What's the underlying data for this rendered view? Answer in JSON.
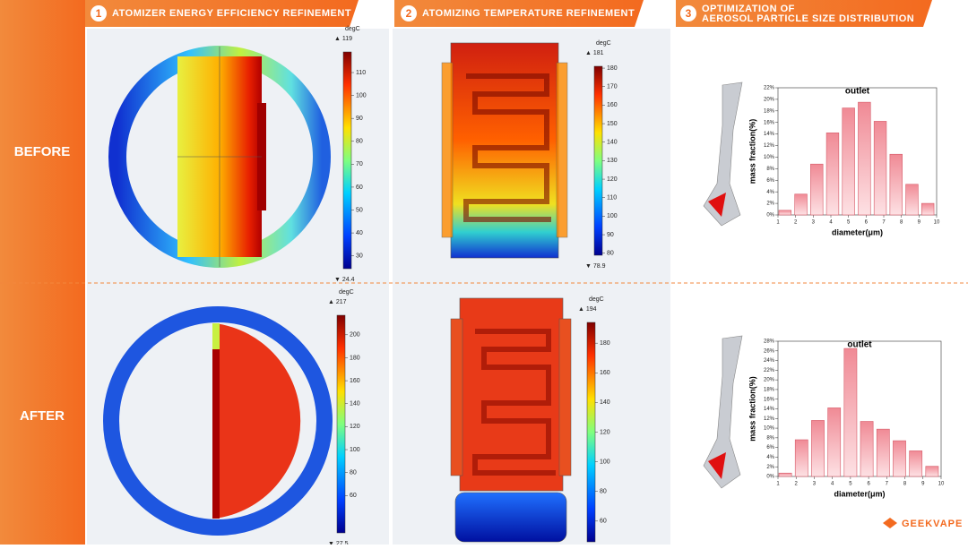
{
  "header": {
    "sections": [
      {
        "number": "1",
        "title": "ATOMIZER ENERGY EFFICIENCY REFINEMENT"
      },
      {
        "number": "2",
        "title": "ATOMIZING TEMPERATURE REFINEMENT"
      },
      {
        "number": "3",
        "title": [
          "OPTIMIZATION OF",
          "AEROSOL PARTICLE SIZE DISTRIBUTION"
        ]
      }
    ]
  },
  "rows": [
    "BEFORE",
    "AFTER"
  ],
  "colorbars": [
    {
      "unit": "degC",
      "max_label": "▲ 119",
      "min_label": "▼ 24.4",
      "lim": [
        24.4,
        119
      ],
      "ticks": [
        30,
        40,
        50,
        60,
        70,
        80,
        90,
        100,
        110
      ]
    },
    {
      "unit": "degC",
      "max_label": "▲ 217",
      "min_label": "▼ 27.5",
      "lim": [
        27.5,
        217
      ],
      "ticks": [
        60,
        80,
        100,
        120,
        140,
        160,
        180,
        200
      ]
    },
    {
      "unit": "degC",
      "max_label": "▲ 181",
      "min_label": "▼ 78.9",
      "lim": [
        78.9,
        181
      ],
      "ticks": [
        80,
        90,
        100,
        110,
        120,
        130,
        140,
        150,
        160,
        170,
        180
      ]
    },
    {
      "unit": "degC",
      "max_label": "▲ 194",
      "lim": [
        46,
        194
      ],
      "ticks": [
        60,
        80,
        100,
        120,
        140,
        160,
        180
      ]
    }
  ],
  "chart_data": [
    {
      "type": "bar",
      "title": "outlet",
      "x_label": "diameter(μm)",
      "y_label": "mass fraction(%)",
      "color": "#f3a3ab",
      "x": [
        1.4,
        2.3,
        3.2,
        4.1,
        5.0,
        5.9,
        6.8,
        7.7,
        8.6,
        9.5
      ],
      "values": [
        0.8,
        3.6,
        8.8,
        14.2,
        18.5,
        19.5,
        16.2,
        10.5,
        5.3,
        2.0
      ],
      "xlim": [
        1,
        10
      ],
      "xticks": [
        1,
        2,
        3,
        4,
        5,
        6,
        7,
        8,
        9,
        10
      ],
      "ylim": [
        0,
        22
      ],
      "yticks": [
        {
          "value": 0,
          "label": "0%"
        },
        {
          "value": 2,
          "label": "2%"
        },
        {
          "value": 4,
          "label": "4%"
        },
        {
          "value": 6,
          "label": "6%"
        },
        {
          "value": 8,
          "label": "8%"
        },
        {
          "value": 10,
          "label": "10%"
        },
        {
          "value": 12,
          "label": "12%"
        },
        {
          "value": 14,
          "label": "14%"
        },
        {
          "value": 16,
          "label": "16%"
        },
        {
          "value": 18,
          "label": "18%"
        },
        {
          "value": 20,
          "label": "20%"
        },
        {
          "value": 22,
          "label": "22%"
        }
      ]
    },
    {
      "type": "bar",
      "title": "outlet",
      "x_label": "diameter(μm)",
      "y_label": "mass fraction(%)",
      "color": "#f3a3ab",
      "x": [
        1.4,
        2.3,
        3.2,
        4.1,
        5.0,
        5.9,
        6.8,
        7.7,
        8.6,
        9.5
      ],
      "values": [
        0.7,
        7.6,
        11.6,
        14.2,
        26.5,
        11.4,
        9.8,
        7.4,
        5.3,
        2.1
      ],
      "xlim": [
        1,
        10
      ],
      "xticks": [
        1,
        2,
        3,
        4,
        5,
        6,
        7,
        8,
        9,
        10
      ],
      "ylim": [
        0,
        28
      ],
      "yticks": [
        {
          "value": 0,
          "label": "0%"
        },
        {
          "value": 2,
          "label": "2%"
        },
        {
          "value": 4,
          "label": "4%"
        },
        {
          "value": 6,
          "label": "6%"
        },
        {
          "value": 8,
          "label": "8%"
        },
        {
          "value": 10,
          "label": "10%"
        },
        {
          "value": 12,
          "label": "12%"
        },
        {
          "value": 14,
          "label": "14%"
        },
        {
          "value": 16,
          "label": "16%"
        },
        {
          "value": 18,
          "label": "18%"
        },
        {
          "value": 20,
          "label": "20%"
        },
        {
          "value": 22,
          "label": "22%"
        },
        {
          "value": 24,
          "label": "24%"
        },
        {
          "value": 26,
          "label": "26%"
        },
        {
          "value": 28,
          "label": "28%"
        }
      ]
    }
  ],
  "brand": "GEEKVAPE"
}
